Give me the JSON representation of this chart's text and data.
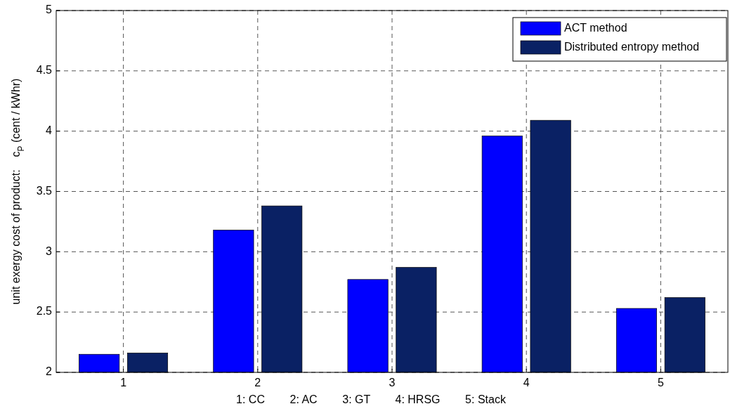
{
  "chart_data": {
    "type": "bar",
    "xlabel": "1: CC        2: AC        3: GT        4: HRSG        5: Stack",
    "ylabel": "unit exergy cost of product:    c$_{P}$ (cent / kWhr)",
    "categories": [
      "1",
      "2",
      "3",
      "4",
      "5"
    ],
    "series": [
      {
        "name": "ACT method",
        "color": "#0000ff",
        "values": [
          2.15,
          3.18,
          2.77,
          3.96,
          2.53
        ]
      },
      {
        "name": "Distributed entropy method",
        "color": "#0a2164",
        "values": [
          2.16,
          3.38,
          2.87,
          4.09,
          2.62
        ]
      }
    ],
    "ylim": [
      2,
      5
    ],
    "yticks": [
      2,
      2.5,
      3,
      3.5,
      4,
      4.5,
      5
    ],
    "grid": true,
    "legend": "top right"
  }
}
